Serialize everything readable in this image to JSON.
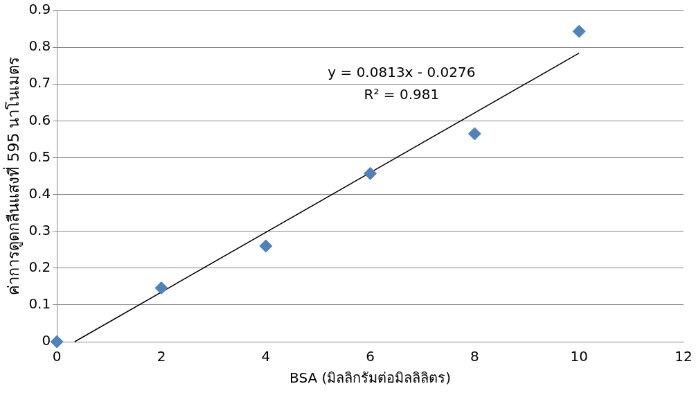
{
  "chart_data": {
    "type": "scatter",
    "xlabel": "BSA (มิลลิกรัมต่อมิลลิลิตร)",
    "ylabel": "ค่าการดูดกลืนแสงที่ 595 นาโนเมตร",
    "x": [
      0,
      2,
      4,
      6,
      8,
      10
    ],
    "series": [
      {
        "type": "scatter",
        "color": "#4f81bd",
        "values": [
          0,
          0.146,
          0.26,
          0.457,
          0.565,
          0.843
        ],
        "marker": "diamond"
      },
      {
        "type": "line",
        "color": "#000000",
        "x": [
          0.34,
          10
        ],
        "values": [
          0,
          0.784
        ],
        "marker": "none",
        "line_style": "solid"
      }
    ],
    "xlim": [
      0,
      12
    ],
    "xticks": [
      0,
      2,
      4,
      6,
      8,
      10,
      12
    ],
    "ylim": [
      0,
      0.9
    ],
    "yticks": [
      0,
      0.1,
      0.2,
      0.3,
      0.4,
      0.5,
      0.6,
      0.7,
      0.8,
      0.9
    ],
    "grid": "y",
    "legend": false,
    "annotations": [
      "y = 0.0813x - 0.0276",
      "R² = 0.981"
    ]
  }
}
